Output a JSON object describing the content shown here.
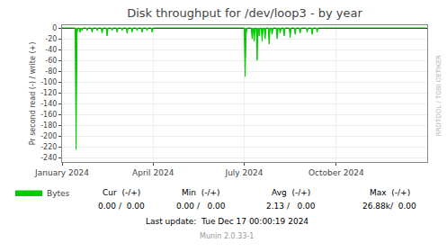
{
  "chart_data": {
    "type": "area",
    "title": "Disk throughput for /dev/loop3 - by year",
    "y_label": "Pr second read (-) / write (+)",
    "x": [
      0,
      1,
      2,
      3,
      4,
      5,
      6,
      7,
      8,
      9,
      10,
      11,
      12,
      13,
      14,
      15,
      16,
      17,
      18,
      19,
      20,
      21,
      22,
      23,
      24,
      25,
      26,
      27,
      28,
      29,
      30,
      31,
      32,
      33,
      34,
      35,
      36,
      37,
      38,
      39,
      40,
      41,
      42,
      43,
      44,
      45,
      46,
      47,
      48,
      49,
      50,
      51,
      52,
      53,
      54,
      55,
      56,
      57,
      58,
      59,
      60,
      61,
      62,
      63,
      64,
      65,
      66,
      67,
      68,
      69,
      70,
      71,
      72,
      73,
      74,
      75,
      76,
      77,
      78,
      79,
      80,
      81,
      82,
      83,
      84,
      85,
      86,
      87,
      88,
      89,
      90,
      91,
      92,
      93,
      94,
      95,
      96,
      97,
      98,
      99,
      100,
      101,
      102,
      103,
      104,
      105,
      106,
      107,
      108,
      109,
      110,
      111,
      112,
      113,
      114,
      115,
      116,
      117,
      118,
      119,
      120,
      121,
      122,
      123,
      124,
      125,
      126,
      127,
      128,
      129,
      130,
      131,
      132,
      133,
      134,
      135,
      136,
      137,
      138,
      139,
      140,
      141,
      142,
      143,
      144,
      145,
      146,
      147,
      148,
      149,
      150,
      151,
      152,
      153,
      154,
      155,
      156,
      157,
      158,
      159,
      160,
      161,
      162,
      163,
      164,
      165,
      166,
      167,
      168,
      169,
      170,
      171,
      172,
      173,
      174,
      175,
      176,
      177,
      178,
      179,
      180,
      181,
      182,
      183,
      184,
      185,
      186,
      187,
      188,
      189,
      190,
      191,
      192,
      193,
      194,
      195,
      196,
      197,
      198,
      199,
      200,
      201,
      202,
      203,
      204,
      205,
      206,
      207,
      208,
      209,
      210,
      211,
      212,
      213,
      214,
      215,
      216,
      217,
      218,
      219,
      220,
      221,
      222,
      223,
      224,
      225,
      226,
      227,
      228,
      229,
      230,
      231,
      232,
      233,
      234,
      235,
      236,
      237,
      238,
      239,
      240,
      241,
      242,
      243,
      244,
      245,
      246,
      247,
      248,
      249,
      250,
      251,
      252,
      253,
      254,
      255,
      256,
      257,
      258,
      259,
      260,
      261,
      262,
      263,
      264,
      265,
      266,
      267,
      268,
      269,
      270,
      271,
      272,
      273,
      274,
      275,
      276,
      277,
      278,
      279,
      280,
      281,
      282,
      283,
      284,
      285,
      286,
      287,
      288,
      289,
      290,
      291,
      292,
      293,
      294,
      295,
      296,
      297,
      298,
      299,
      300,
      301,
      302,
      303,
      304,
      305,
      306,
      307,
      308,
      309,
      310,
      311,
      312,
      313,
      314,
      315,
      316,
      317,
      318,
      319,
      320,
      321,
      322,
      323,
      324,
      325,
      326,
      327,
      328,
      329,
      330,
      331,
      332,
      333,
      334,
      335,
      336,
      337,
      338,
      339,
      340,
      341,
      342,
      343,
      344,
      345,
      346,
      347,
      348,
      349,
      350,
      351,
      352,
      353,
      354,
      355,
      356,
      357,
      358,
      359,
      360,
      361,
      362,
      363,
      364
    ],
    "series": [
      {
        "name": "Bytes",
        "color": "#00cc00",
        "values": [
          0,
          0,
          0,
          0,
          0,
          0,
          0,
          0,
          0,
          0,
          0,
          0,
          0,
          0,
          -225,
          -10,
          0,
          0,
          -8,
          0,
          -5,
          0,
          0,
          0,
          0,
          -5,
          0,
          0,
          0,
          0,
          -8,
          0,
          0,
          0,
          0,
          -5,
          0,
          0,
          0,
          0,
          -10,
          0,
          0,
          0,
          0,
          -15,
          0,
          0,
          0,
          0,
          -5,
          0,
          0,
          0,
          0,
          -8,
          0,
          0,
          0,
          0,
          -5,
          0,
          0,
          0,
          0,
          -10,
          0,
          0,
          0,
          0,
          -8,
          0,
          0,
          0,
          0,
          -5,
          0,
          0,
          0,
          0,
          -8,
          0,
          0,
          0,
          0,
          -5,
          0,
          0,
          0,
          0,
          -8,
          0,
          0,
          0,
          0,
          0,
          0,
          0,
          0,
          0,
          0,
          0,
          0,
          0,
          0,
          0,
          0,
          0,
          0,
          0,
          0,
          0,
          0,
          0,
          0,
          0,
          0,
          0,
          0,
          0,
          0,
          0,
          0,
          0,
          0,
          0,
          0,
          0,
          0,
          0,
          0,
          0,
          0,
          0,
          0,
          0,
          0,
          0,
          0,
          0,
          0,
          0,
          0,
          0,
          0,
          0,
          0,
          0,
          0,
          0,
          0,
          0,
          0,
          0,
          0,
          0,
          0,
          0,
          0,
          0,
          0,
          0,
          0,
          0,
          0,
          0,
          0,
          0,
          0,
          0,
          0,
          0,
          0,
          0,
          0,
          0,
          0,
          0,
          0,
          0,
          0,
          0,
          0,
          -90,
          -12,
          0,
          0,
          0,
          0,
          0,
          -20,
          0,
          -25,
          0,
          0,
          -60,
          0,
          -15,
          0,
          0,
          -25,
          0,
          0,
          -20,
          0,
          0,
          0,
          -30,
          0,
          0,
          -12,
          0,
          0,
          0,
          0,
          -20,
          0,
          0,
          -10,
          0,
          0,
          0,
          -15,
          0,
          0,
          0,
          0,
          0,
          -18,
          0,
          0,
          0,
          0,
          -12,
          0,
          0,
          0,
          0,
          -10,
          0,
          0,
          0,
          0,
          0,
          0,
          -8,
          0,
          0,
          0,
          0,
          -12,
          0,
          0,
          0,
          0,
          -8,
          0,
          0,
          0,
          0,
          0,
          0,
          0,
          0,
          0,
          0,
          0,
          0,
          0,
          0,
          0,
          0,
          0,
          0,
          0,
          0,
          0,
          0,
          0,
          0,
          0,
          0,
          0,
          0,
          0,
          0,
          0,
          0,
          0,
          0,
          0,
          0,
          0,
          0,
          0,
          0,
          0,
          0,
          0,
          0,
          0,
          0,
          0,
          0,
          0,
          0,
          0,
          0,
          0,
          0,
          0,
          0,
          0,
          0,
          0,
          0,
          0,
          0,
          0,
          0,
          0,
          0,
          0,
          0,
          0,
          0,
          0,
          0,
          0,
          0,
          0,
          0,
          0,
          0,
          0,
          0,
          0,
          0,
          0,
          0,
          0,
          0,
          0,
          0,
          0,
          0,
          0,
          0,
          0,
          0,
          0,
          0,
          0,
          0,
          0,
          0,
          0,
          0,
          0,
          0,
          0,
          0,
          0,
          0,
          0
        ]
      }
    ],
    "xlim": [
      0,
      365
    ],
    "xticks": [
      {
        "value": 0,
        "label": "January 2024"
      },
      {
        "value": 91,
        "label": "April 2024"
      },
      {
        "value": 182,
        "label": "July 2024"
      },
      {
        "value": 274,
        "label": "October 2024"
      }
    ],
    "ylim": [
      -248,
      5
    ],
    "yticks": [
      0,
      -20,
      -40,
      -60,
      -80,
      -100,
      -120,
      -140,
      -160,
      -180,
      -200,
      -220,
      -240
    ],
    "grid": true,
    "legend": "lower left",
    "annotations": [
      [
        "Cur  (-/+)",
        "Min  (-/+)",
        "Avg  (-/+)",
        "Max  (-/+)"
      ],
      [
        "0.00 /  0.00",
        "0.00 /   0.00",
        "2.13 /   0.00",
        "26.88k/  0.00"
      ],
      [
        "Last update:  Tue Dec 17 00:00:19 2024"
      ],
      [
        "Munin 2.0.33-1"
      ],
      [
        "RRDTOOL / TOBI OETIKER"
      ]
    ]
  }
}
